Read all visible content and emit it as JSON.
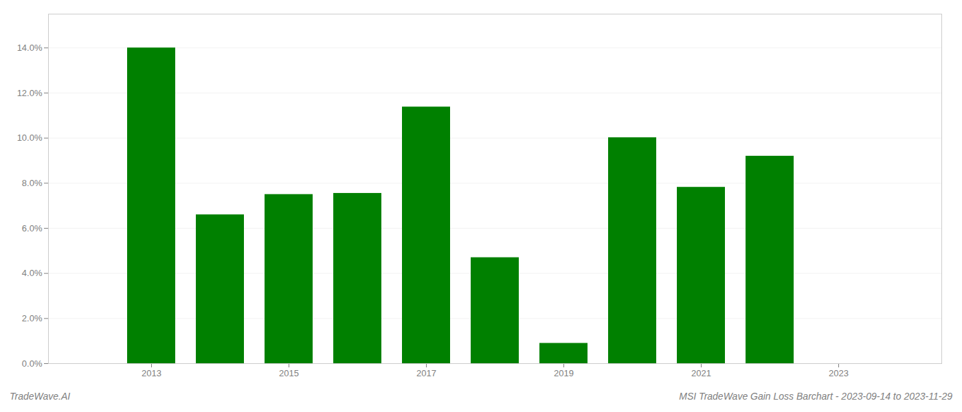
{
  "chart_data": {
    "type": "bar",
    "title": "MSI TradeWave Gain Loss Barchart - 2023-09-14 to 2023-11-29",
    "annotations": [
      "TradeWave.AI"
    ],
    "x": [
      2013,
      2014,
      2015,
      2016,
      2017,
      2018,
      2019,
      2020,
      2021,
      2022,
      2023
    ],
    "values": [
      0.14,
      0.066,
      0.075,
      0.0755,
      0.1138,
      0.047,
      0.009,
      0.1002,
      0.0782,
      0.092,
      null
    ],
    "color": "#008000",
    "xlim": [
      2011.5,
      2024.5
    ],
    "xticks": [
      2013,
      2015,
      2017,
      2019,
      2021,
      2023
    ],
    "ylim": [
      0,
      0.155
    ],
    "yticks": [
      {
        "value": 0.0,
        "label": "0.0%"
      },
      {
        "value": 0.02,
        "label": "2.0%"
      },
      {
        "value": 0.04,
        "label": "4.0%"
      },
      {
        "value": 0.06,
        "label": "6.0%"
      },
      {
        "value": 0.08,
        "label": "8.0%"
      },
      {
        "value": 0.1,
        "label": "10.0%"
      },
      {
        "value": 0.12,
        "label": "12.0%"
      },
      {
        "value": 0.14,
        "label": "14.0%"
      }
    ],
    "grid": true
  }
}
